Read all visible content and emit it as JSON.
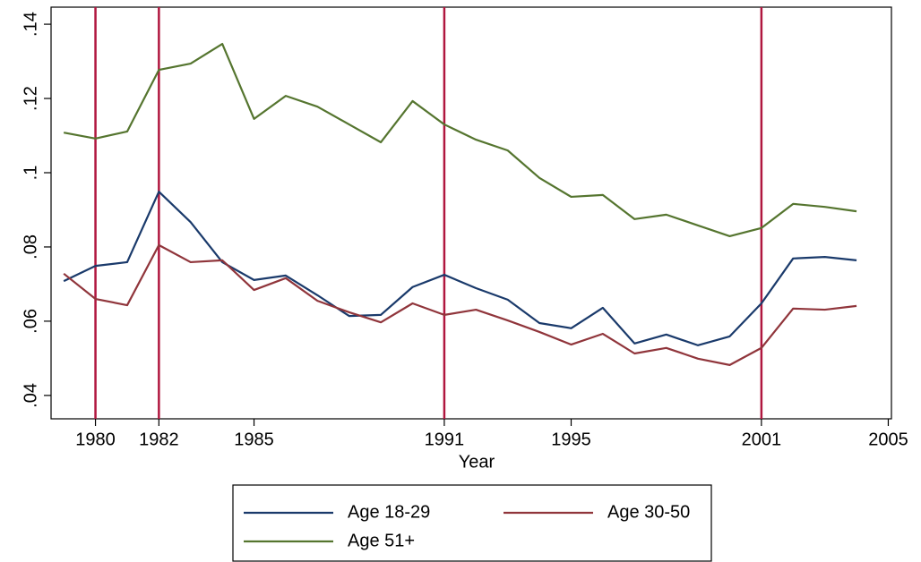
{
  "chart_data": {
    "type": "line",
    "x_label": "Year",
    "x": [
      1979,
      1980,
      1981,
      1982,
      1983,
      1984,
      1985,
      1986,
      1987,
      1988,
      1989,
      1990,
      1991,
      1992,
      1993,
      1994,
      1995,
      1996,
      1997,
      1998,
      1999,
      2000,
      2001,
      2002,
      2003,
      2004
    ],
    "series": [
      {
        "name": "Age 18-29",
        "color": "#1a3a6b",
        "values": [
          0.0708,
          0.0749,
          0.0759,
          0.0949,
          0.0867,
          0.0759,
          0.0711,
          0.0723,
          0.067,
          0.0614,
          0.0617,
          0.0692,
          0.0725,
          0.0689,
          0.0658,
          0.0595,
          0.0581,
          0.0636,
          0.054,
          0.0564,
          0.0535,
          0.0559,
          0.0648,
          0.0769,
          0.0773,
          0.0764
        ]
      },
      {
        "name": "Age 30-50",
        "color": "#90353b",
        "values": [
          0.0728,
          0.066,
          0.0643,
          0.0805,
          0.0759,
          0.0764,
          0.0684,
          0.0716,
          0.0655,
          0.0624,
          0.0597,
          0.0648,
          0.0617,
          0.0631,
          0.0602,
          0.0571,
          0.0537,
          0.0566,
          0.0513,
          0.0528,
          0.0499,
          0.0482,
          0.0528,
          0.0634,
          0.0631,
          0.0641
        ]
      },
      {
        "name": "Age 51+",
        "color": "#55752f",
        "values": [
          0.1108,
          0.1092,
          0.1111,
          0.1277,
          0.1294,
          0.1347,
          0.1145,
          0.1207,
          0.1178,
          0.113,
          0.1082,
          0.1193,
          0.113,
          0.1089,
          0.106,
          0.0986,
          0.0935,
          0.094,
          0.0875,
          0.0887,
          0.0858,
          0.0829,
          0.0851,
          0.0916,
          0.0908,
          0.0896
        ]
      }
    ],
    "xlim": [
      1978.6,
      2005.1
    ],
    "xticks": [
      1980,
      1982,
      1985,
      1991,
      1995,
      2001,
      2005
    ],
    "ylim": [
      0.0337,
      0.1446
    ],
    "yticks": [
      {
        "value": 0.04,
        "label": ".04"
      },
      {
        "value": 0.06,
        "label": ".06"
      },
      {
        "value": 0.08,
        "label": ".08"
      },
      {
        "value": 0.1,
        "label": ".1"
      },
      {
        "value": 0.12,
        "label": ".12"
      },
      {
        "value": 0.14,
        "label": ".14"
      }
    ],
    "vlines": [
      1980,
      1982,
      1991,
      2001
    ],
    "vline_color": "#b0173f",
    "grid": false
  }
}
